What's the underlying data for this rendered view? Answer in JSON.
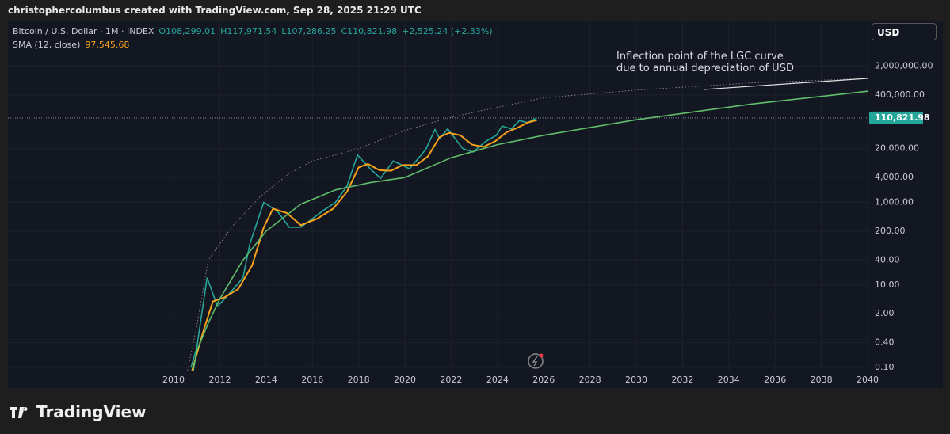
{
  "header": {
    "attribution": "christophercolumbus created with TradingView.com, Sep 28, 2025 21:29 UTC"
  },
  "footer": {
    "brand": "TradingView"
  },
  "chart_data": {
    "type": "line",
    "log_scale": true,
    "grid": true,
    "currency": "USD",
    "annotation": [
      "Inflection point of the LGC curve",
      "due to annual depreciation of USD"
    ],
    "last_price": {
      "value": 110821.98,
      "label": "110,821.98"
    },
    "xlim": [
      2002.84,
      2040
    ],
    "xticks": [
      2010,
      2012,
      2014,
      2016,
      2018,
      2020,
      2022,
      2024,
      2026,
      2028,
      2030,
      2032,
      2034,
      2036,
      2038,
      2040
    ],
    "ylim": [
      0.084,
      23000000
    ],
    "yticks": [
      {
        "value": 0.1,
        "label": "0.10"
      },
      {
        "value": 0.4,
        "label": "0.40"
      },
      {
        "value": 2,
        "label": "2.00"
      },
      {
        "value": 10,
        "label": "10.00"
      },
      {
        "value": 40,
        "label": "40.00"
      },
      {
        "value": 200,
        "label": "200.00"
      },
      {
        "value": 1000,
        "label": "1,000.00"
      },
      {
        "value": 4000,
        "label": "4,000.00"
      },
      {
        "value": 20000,
        "label": "20,000.00"
      },
      {
        "value": 400000,
        "label": "400,000.00"
      },
      {
        "value": 2000000,
        "label": "2,000,000.00"
      }
    ],
    "series": [
      {
        "name": "Bitcoin / U.S. Dollar · 1M · INDEX",
        "ohlc": [
          "O108,299.01",
          "H117,971.54",
          "L107,286.25",
          "C110,821.98"
        ],
        "change": "+2,525.24 (+2.33%)",
        "color": "#26a69a",
        "x": [
          2010.75,
          2011.0,
          2011.45,
          2011.9,
          2012.5,
          2013.0,
          2013.3,
          2013.9,
          2014.5,
          2015.0,
          2015.5,
          2016.0,
          2016.5,
          2017.0,
          2017.5,
          2017.95,
          2018.5,
          2018.95,
          2019.5,
          2020.2,
          2020.9,
          2021.3,
          2021.5,
          2021.85,
          2022.5,
          2022.95,
          2023.5,
          2023.95,
          2024.2,
          2024.6,
          2024.95,
          2025.3,
          2025.7
        ],
        "values": [
          0.1,
          0.3,
          15,
          3,
          7,
          15,
          100,
          1000,
          600,
          250,
          250,
          400,
          650,
          1000,
          2500,
          14000,
          6500,
          3800,
          10000,
          6500,
          19000,
          58000,
          35000,
          60000,
          20000,
          16500,
          30000,
          42000,
          70000,
          60000,
          95000,
          85000,
          110821.98
        ]
      },
      {
        "name": "SMA (12, close)",
        "last_label": "97,545.68",
        "color": "#f7a21b",
        "x": [
          2010.8,
          2011.3,
          2011.7,
          2012.2,
          2012.8,
          2013.4,
          2013.9,
          2014.3,
          2014.9,
          2015.5,
          2016.2,
          2016.9,
          2017.5,
          2018.0,
          2018.4,
          2018.9,
          2019.4,
          2019.9,
          2020.5,
          2021.0,
          2021.5,
          2021.9,
          2022.4,
          2022.9,
          2023.4,
          2023.9,
          2024.4,
          2024.9,
          2025.3,
          2025.7
        ],
        "values": [
          0.084,
          0.8,
          4,
          5,
          8,
          30,
          250,
          700,
          550,
          280,
          400,
          700,
          1800,
          7000,
          8500,
          6000,
          5800,
          8000,
          8000,
          13000,
          38000,
          48000,
          42000,
          25000,
          22000,
          30000,
          50000,
          65000,
          85000,
          97545.68
        ]
      },
      {
        "color": "#5fbf6a",
        "x": [
          2010.85,
          2011.0,
          2011.5,
          2012.0,
          2013.0,
          2014.0,
          2015.5,
          2017.0,
          2018.5,
          2020.0,
          2022.0,
          2024.0,
          2026.0,
          2030.0,
          2035.0,
          2040.0
        ],
        "values": [
          0.084,
          0.25,
          1.2,
          4.6,
          40,
          200,
          900,
          2000,
          3000,
          4000,
          12000,
          25000,
          42000,
          100000,
          240000,
          490000
        ]
      },
      {
        "color": "#8a8d96",
        "dash": true,
        "x": [
          2010.6,
          2011.0,
          2011.5,
          2012.5,
          2013.7,
          2015.0,
          2016.0,
          2018.0,
          2020.0,
          2022.0,
          2024.0,
          2026.0,
          2030.0,
          2035.0,
          2040.0
        ],
        "values": [
          0.084,
          1,
          40,
          250,
          1300,
          5000,
          10000,
          20000,
          55000,
          115000,
          200000,
          340000,
          520000,
          780000,
          1000000
        ]
      }
    ]
  }
}
